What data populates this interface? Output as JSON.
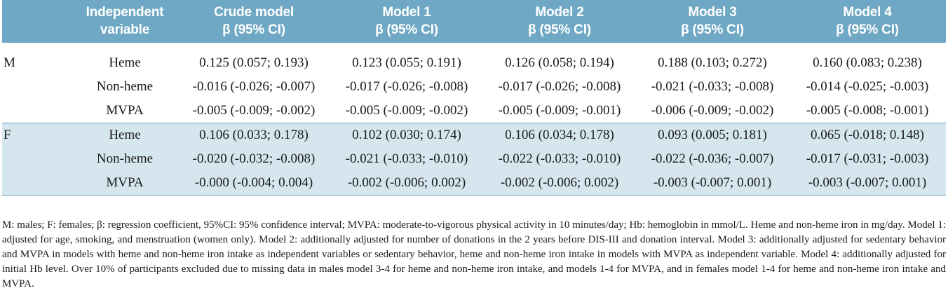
{
  "header": {
    "col0": "",
    "col1": [
      "Independent",
      "variable"
    ],
    "models": [
      {
        "name": "Crude model",
        "stat": "β (95% CI)"
      },
      {
        "name": "Model 1",
        "stat": "β (95% CI)"
      },
      {
        "name": "Model 2",
        "stat": "β (95% CI)"
      },
      {
        "name": "Model 3",
        "stat": "β (95% CI)"
      },
      {
        "name": "Model 4",
        "stat": "β (95% CI)"
      }
    ]
  },
  "groups": [
    {
      "sex": "M",
      "rows": [
        {
          "variable": "Heme",
          "values": [
            "0.125 (0.057; 0.193)",
            "0.123 (0.055; 0.191)",
            "0.126 (0.058; 0.194)",
            "0.188 (0.103; 0.272)",
            "0.160 (0.083; 0.238)"
          ]
        },
        {
          "variable": "Non-heme",
          "values": [
            "-0.016 (-0.026; -0.007)",
            "-0.017 (-0.026; -0.008)",
            "-0.017 (-0.026; -0.008)",
            "-0.021 (-0.033; -0.008)",
            "-0.014 (-0.025; -0.003)"
          ]
        },
        {
          "variable": "MVPA",
          "values": [
            "-0.005 (-0.009; -0.002)",
            "-0.005 (-0.009; -0.002)",
            "-0.005 (-0.009; -0.001)",
            "-0.006 (-0.009; -0.002)",
            "-0.005 (-0.008; -0.001)"
          ]
        }
      ]
    },
    {
      "sex": "F",
      "rows": [
        {
          "variable": "Heme",
          "values": [
            "0.106 (0.033; 0.178)",
            "0.102 (0.030; 0.174)",
            "0.106 (0.034; 0.178)",
            "0.093 (0.005; 0.181)",
            "0.065 (-0.018; 0.148)"
          ]
        },
        {
          "variable": "Non-heme",
          "values": [
            "-0.020 (-0.032; -0.008)",
            "-0.021 (-0.033; -0.010)",
            "-0.022 (-0.033; -0.010)",
            "-0.022 (-0.036; -0.007)",
            "-0.017 (-0.031; -0.003)"
          ]
        },
        {
          "variable": "MVPA",
          "values": [
            "-0.000 (-0.004; 0.004)",
            "-0.002 (-0.006; 0.002)",
            "-0.002 (-0.006; 0.002)",
            "-0.003 (-0.007; 0.001)",
            "-0.003 (-0.007; 0.001)"
          ]
        }
      ]
    }
  ],
  "footnote": "M: males; F: females; β: regression coefficient, 95%CI: 95% confidence interval; MVPA: moderate-to-vigorous physical activity in 10 minutes/day; Hb: hemoglobin in mmol/L. Heme and non-heme iron in mg/day. Model 1: adjusted for age, smoking, and menstruation (women only). Model 2: additionally adjusted for number of donations in the 2 years before DIS-III and donation interval. Model 3: additionally adjusted for sedentary behavior and MVPA in models with heme and non-heme iron intake as independent variables or sedentary behavior, heme and non-heme iron intake in models with MVPA as independent variable. Model 4: additionally adjusted for initial Hb level. Over 10% of participants excluded due to missing data in males model 3-4 for heme and non-heme iron intake, and models 1-4 for MVPA, and in females model 1-4 for heme and non-heme iron intake and MVPA.",
  "colors": {
    "header_bg": "#6fa8c4",
    "female_band": "#d6e6ee",
    "header_text": "#ffffff"
  }
}
